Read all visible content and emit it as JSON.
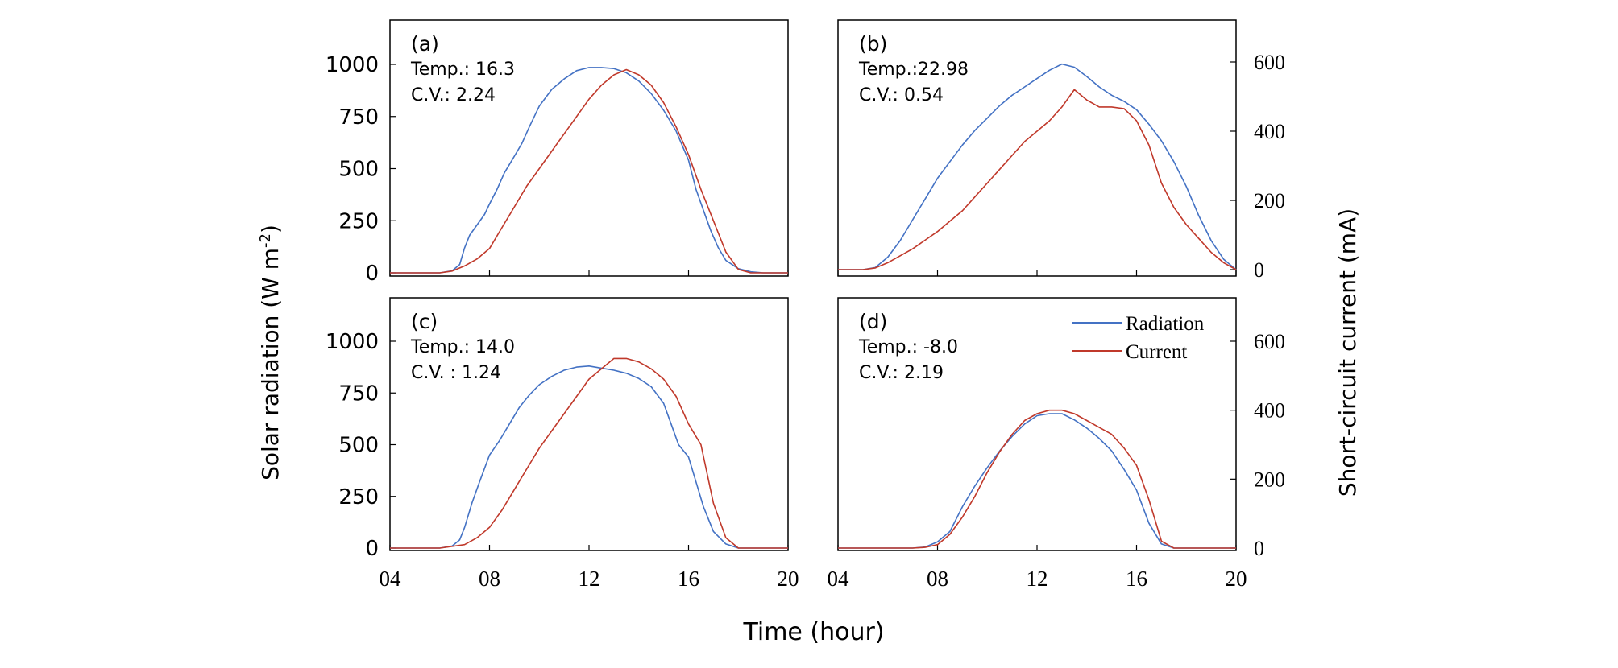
{
  "figure": {
    "x_axis_label": "Time (hour)",
    "left_axis_label": "Solar radiation (W m",
    "left_axis_label_sup": "-2",
    "left_axis_label_end": ")",
    "right_axis_label": "Short-circuit current (mA)",
    "x_tick_labels": [
      "04",
      "08",
      "12",
      "16",
      "20"
    ],
    "left_tick_labels": [
      "0",
      "250",
      "500",
      "750",
      "1000"
    ],
    "right_tick_labels": [
      "0",
      "200",
      "400",
      "600"
    ],
    "legend": {
      "radiation": "Radiation",
      "current": "Current"
    },
    "colors": {
      "radiation": "#4472c4",
      "current": "#c0392b",
      "frame": "#000000"
    }
  },
  "chart_data": [
    {
      "panel": "(a)",
      "temp_text": "Temp.: 16.3",
      "cv_text": "C.V.: 2.24",
      "type": "line",
      "xlim": [
        4,
        20
      ],
      "ylim_left": [
        0,
        1200
      ],
      "ylim_right": [
        0,
        700
      ],
      "series": [
        {
          "name": "Radiation",
          "axis": "left",
          "x": [
            4,
            5,
            6,
            6.5,
            6.8,
            7,
            7.2,
            7.5,
            7.8,
            8,
            8.3,
            8.6,
            9,
            9.3,
            9.6,
            10,
            10.5,
            11,
            11.5,
            12,
            12.5,
            13,
            13.5,
            14,
            14.5,
            15,
            15.5,
            16,
            16.3,
            16.6,
            16.9,
            17.2,
            17.5,
            18,
            18.5,
            19,
            20
          ],
          "y": [
            0,
            0,
            0,
            10,
            40,
            120,
            180,
            230,
            280,
            330,
            400,
            480,
            560,
            620,
            700,
            800,
            880,
            930,
            970,
            985,
            985,
            980,
            960,
            920,
            860,
            780,
            680,
            540,
            400,
            300,
            200,
            120,
            60,
            20,
            5,
            0,
            0
          ]
        },
        {
          "name": "Current",
          "axis": "right",
          "x": [
            4,
            5,
            6,
            6.5,
            7,
            7.5,
            8,
            8.5,
            9,
            9.5,
            10,
            10.5,
            11,
            11.5,
            12,
            12.5,
            13,
            13.5,
            14,
            14.5,
            15,
            15.5,
            16,
            16.5,
            17,
            17.5,
            18,
            18.5,
            19,
            20
          ],
          "y": [
            0,
            0,
            0,
            5,
            20,
            40,
            70,
            130,
            190,
            250,
            300,
            350,
            400,
            450,
            500,
            540,
            570,
            585,
            570,
            540,
            490,
            420,
            340,
            240,
            150,
            60,
            10,
            0,
            0,
            0
          ]
        }
      ]
    },
    {
      "panel": "(b)",
      "temp_text": "Temp.:22.98",
      "cv_text": "C.V.: 0.54",
      "type": "line",
      "xlim": [
        4,
        20
      ],
      "ylim_left": [
        0,
        1200
      ],
      "ylim_right": [
        0,
        700
      ],
      "series": [
        {
          "name": "Radiation",
          "axis": "left",
          "x": [
            4,
            5,
            5.5,
            6,
            6.5,
            7,
            7.5,
            8,
            8.5,
            9,
            9.5,
            10,
            10.5,
            11,
            11.5,
            12,
            12.5,
            13,
            13.5,
            14,
            14.5,
            15,
            15.5,
            16,
            16.5,
            17,
            17.5,
            18,
            18.5,
            19,
            19.5,
            20
          ],
          "y": [
            0,
            0,
            10,
            60,
            140,
            240,
            340,
            440,
            520,
            600,
            670,
            730,
            790,
            840,
            880,
            920,
            960,
            990,
            975,
            930,
            880,
            840,
            810,
            770,
            700,
            620,
            520,
            400,
            260,
            140,
            50,
            0
          ]
        },
        {
          "name": "Current",
          "axis": "right",
          "x": [
            4,
            5,
            5.5,
            6,
            6.5,
            7,
            7.5,
            8,
            8.5,
            9,
            9.5,
            10,
            10.5,
            11,
            11.5,
            12,
            12.5,
            13,
            13.5,
            14,
            14.5,
            15,
            15.5,
            16,
            16.5,
            17,
            17.5,
            18,
            18.5,
            19,
            19.5,
            20
          ],
          "y": [
            0,
            0,
            5,
            20,
            40,
            60,
            85,
            110,
            140,
            170,
            210,
            250,
            290,
            330,
            370,
            400,
            430,
            470,
            520,
            490,
            470,
            470,
            465,
            430,
            360,
            250,
            180,
            130,
            90,
            50,
            20,
            0
          ]
        }
      ]
    },
    {
      "panel": "(c)",
      "temp_text": "Temp.: 14.0",
      "cv_text": "C.V. : 1.24",
      "type": "line",
      "xlim": [
        4,
        20
      ],
      "ylim_left": [
        0,
        1200
      ],
      "ylim_right": [
        0,
        700
      ],
      "series": [
        {
          "name": "Radiation",
          "axis": "left",
          "x": [
            4,
            5,
            6,
            6.5,
            6.8,
            7,
            7.3,
            7.6,
            8,
            8.4,
            8.8,
            9.2,
            9.6,
            10,
            10.5,
            11,
            11.5,
            12,
            12.5,
            13,
            13.5,
            14,
            14.5,
            15,
            15.3,
            15.6,
            16,
            16.3,
            16.6,
            17,
            17.5,
            18,
            19,
            20
          ],
          "y": [
            0,
            0,
            0,
            10,
            40,
            100,
            220,
            320,
            450,
            520,
            600,
            680,
            740,
            790,
            830,
            860,
            875,
            880,
            870,
            860,
            845,
            820,
            780,
            700,
            600,
            500,
            440,
            320,
            200,
            80,
            20,
            0,
            0,
            0
          ]
        },
        {
          "name": "Current",
          "axis": "right",
          "x": [
            4,
            5,
            6,
            7,
            7.5,
            8,
            8.5,
            9,
            9.5,
            10,
            10.5,
            11,
            11.5,
            12,
            12.5,
            13,
            13.5,
            14,
            14.5,
            15,
            15.5,
            16,
            16.5,
            17,
            17.5,
            18,
            19,
            20
          ],
          "y": [
            0,
            0,
            0,
            10,
            30,
            60,
            110,
            170,
            230,
            290,
            340,
            390,
            440,
            490,
            520,
            550,
            550,
            540,
            520,
            490,
            440,
            360,
            300,
            130,
            30,
            0,
            0,
            0
          ]
        }
      ]
    },
    {
      "panel": "(d)",
      "temp_text": "Temp.: -8.0",
      "cv_text": "C.V.: 2.19",
      "type": "line",
      "xlim": [
        4,
        20
      ],
      "ylim_left": [
        0,
        1200
      ],
      "ylim_right": [
        0,
        700
      ],
      "series": [
        {
          "name": "Radiation",
          "axis": "left",
          "x": [
            4,
            6,
            7,
            7.5,
            8,
            8.5,
            9,
            9.5,
            10,
            10.5,
            11,
            11.5,
            12,
            12.5,
            13,
            13.5,
            14,
            14.5,
            15,
            15.5,
            16,
            16.5,
            17,
            17.5,
            18,
            20
          ],
          "y": [
            0,
            0,
            0,
            5,
            30,
            80,
            200,
            300,
            390,
            470,
            540,
            600,
            640,
            650,
            650,
            620,
            580,
            530,
            470,
            380,
            280,
            120,
            20,
            0,
            0,
            0
          ]
        },
        {
          "name": "Current",
          "axis": "right",
          "x": [
            4,
            6,
            7,
            7.5,
            8,
            8.5,
            9,
            9.5,
            10,
            10.5,
            11,
            11.5,
            12,
            12.5,
            13,
            13.5,
            14,
            14.5,
            15,
            15.5,
            16,
            16.5,
            17,
            17.5,
            18,
            20
          ],
          "y": [
            0,
            0,
            0,
            2,
            10,
            40,
            90,
            150,
            220,
            280,
            330,
            370,
            390,
            400,
            400,
            390,
            370,
            350,
            330,
            290,
            240,
            140,
            20,
            0,
            0,
            0
          ]
        }
      ]
    }
  ]
}
